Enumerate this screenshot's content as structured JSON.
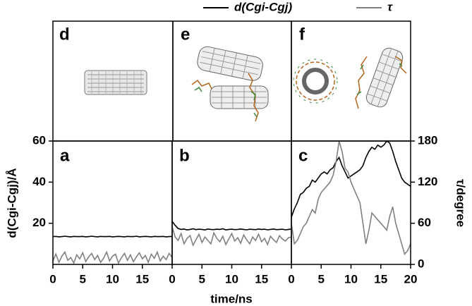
{
  "chart_data": [
    {
      "type": "line",
      "label": "a",
      "x": [
        0,
        0.5,
        1,
        1.5,
        2,
        2.5,
        3,
        3.5,
        4,
        4.5,
        5,
        5.5,
        6,
        6.5,
        7,
        7.5,
        8,
        8.5,
        9,
        9.5,
        10,
        10.5,
        11,
        11.5,
        12,
        12.5,
        13,
        13.5,
        14,
        14.5,
        15,
        15.5,
        16,
        16.5,
        17,
        17.5,
        18,
        18.5,
        19,
        19.5,
        20
      ],
      "xlim": [
        0,
        20
      ],
      "xticks": [
        0,
        5,
        10,
        15
      ],
      "ylim": [
        0,
        60
      ],
      "yticks": [
        20,
        40,
        60
      ],
      "y2lim": [
        0,
        180
      ],
      "series": [
        {
          "name": "d(Cgi-Cgj)",
          "color": "#000000",
          "values": [
            13.5,
            13.6,
            13.4,
            13.5,
            13.7,
            13.5,
            13.4,
            13.6,
            13.5,
            13.5,
            13.6,
            13.4,
            13.5,
            13.7,
            13.5,
            13.4,
            13.6,
            13.5,
            13.5,
            13.6,
            13.4,
            13.5,
            13.6,
            13.5,
            13.4,
            13.6,
            13.5,
            13.5,
            13.7,
            13.4,
            13.5,
            13.6,
            13.5,
            13.4,
            13.6,
            13.5,
            13.5,
            13.6,
            13.4,
            13.5,
            13.6
          ]
        },
        {
          "name": "τ",
          "color": "#808080",
          "axis": "y2",
          "values": [
            5,
            15,
            3,
            12,
            18,
            6,
            10,
            2,
            14,
            8,
            17,
            4,
            11,
            16,
            7,
            13,
            3,
            9,
            18,
            5,
            12,
            15,
            2,
            10,
            16,
            6,
            14,
            4,
            11,
            17,
            8,
            13,
            3,
            15,
            9,
            18,
            5,
            12,
            7,
            16,
            10
          ]
        }
      ]
    },
    {
      "type": "line",
      "label": "b",
      "x": [
        0,
        0.5,
        1,
        1.5,
        2,
        2.5,
        3,
        3.5,
        4,
        4.5,
        5,
        5.5,
        6,
        6.5,
        7,
        7.5,
        8,
        8.5,
        9,
        9.5,
        10,
        10.5,
        11,
        11.5,
        12,
        12.5,
        13,
        13.5,
        14,
        14.5,
        15,
        15.5,
        16,
        16.5,
        17,
        17.5,
        18,
        18.5,
        19,
        19.5,
        20
      ],
      "xlim": [
        0,
        20
      ],
      "xticks": [
        0,
        5,
        10,
        15
      ],
      "ylim": [
        0,
        60
      ],
      "y2lim": [
        0,
        180
      ],
      "series": [
        {
          "color": "#000000",
          "values": [
            21,
            19,
            17.5,
            17,
            17.2,
            16.8,
            17,
            17.3,
            16.9,
            17.1,
            17,
            16.8,
            17.2,
            17,
            16.9,
            17.1,
            17,
            17.3,
            16.8,
            17,
            17.1,
            16.9,
            17,
            17.2,
            17,
            16.8,
            17.1,
            17,
            16.9,
            17.2,
            17,
            17.1,
            16.8,
            17,
            17.2,
            16.9,
            17,
            17.1,
            16.8,
            17,
            17.2
          ]
        },
        {
          "color": "#808080",
          "axis": "y2",
          "values": [
            55,
            40,
            35,
            45,
            30,
            38,
            42,
            28,
            36,
            44,
            32,
            40,
            35,
            30,
            46,
            38,
            33,
            41,
            29,
            37,
            45,
            34,
            39,
            31,
            43,
            36,
            30,
            40,
            35,
            44,
            33,
            38,
            29,
            41,
            36,
            32,
            42,
            37,
            34,
            39,
            40
          ]
        }
      ]
    },
    {
      "type": "line",
      "label": "c",
      "x": [
        0,
        0.5,
        1,
        1.5,
        2,
        2.5,
        3,
        3.5,
        4,
        4.5,
        5,
        5.5,
        6,
        6.5,
        7,
        7.5,
        8,
        8.5,
        9,
        9.5,
        10,
        10.5,
        11,
        11.5,
        12,
        12.5,
        13,
        13.5,
        14,
        14.5,
        15,
        15.5,
        16,
        16.5,
        17,
        17.5,
        18,
        18.5,
        19,
        19.5,
        20
      ],
      "xlim": [
        0,
        20
      ],
      "xticks": [
        0,
        5,
        10,
        15,
        20
      ],
      "ylim": [
        0,
        60
      ],
      "y2lim": [
        0,
        180
      ],
      "y2ticks": [
        0,
        60,
        120,
        180
      ],
      "series": [
        {
          "color": "#000000",
          "values": [
            23,
            27,
            30,
            34,
            35,
            37,
            38,
            41,
            40,
            42,
            44,
            45,
            44,
            46,
            47,
            50,
            52,
            48,
            45,
            42,
            43,
            44,
            45,
            46,
            48,
            52,
            55,
            57,
            56,
            58,
            57,
            58,
            60,
            59,
            55,
            50,
            46,
            42,
            40,
            39,
            38
          ]
        },
        {
          "color": "#808080",
          "axis": "y2",
          "values": [
            60,
            30,
            35,
            45,
            55,
            60,
            70,
            80,
            75,
            95,
            105,
            110,
            115,
            120,
            130,
            150,
            180,
            165,
            140,
            135,
            120,
            110,
            100,
            90,
            60,
            30,
            50,
            75,
            70,
            65,
            60,
            55,
            50,
            70,
            84,
            60,
            45,
            30,
            15,
            20,
            30
          ]
        }
      ]
    }
  ],
  "x_label": "time/ns",
  "y_label": "d(Cgi-Cgj)/Å",
  "y2_label": "τ/degree",
  "image_panels": [
    "d",
    "e",
    "f"
  ]
}
